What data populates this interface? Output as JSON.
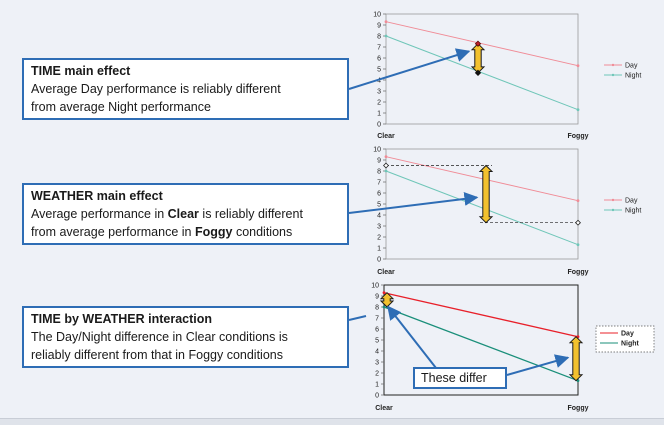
{
  "callouts": {
    "time": {
      "title": "TIME main effect",
      "line1": "Average Day performance is reliably different",
      "line2": "from average Night performance"
    },
    "weather": {
      "title": "WEATHER main effect",
      "line1_pre": "Average performance in ",
      "line1_bold": "Clear",
      "line1_post": " is reliably different",
      "line2_pre": "from average performance in ",
      "line2_bold": "Foggy",
      "line2_post": " conditions"
    },
    "interaction": {
      "title": "TIME by WEATHER interaction",
      "line1": "The Day/Night difference in Clear conditions is",
      "line2": "reliably different from that in Foggy conditions"
    },
    "differ": {
      "label": "These differ"
    }
  },
  "colors": {
    "day_faint": "#f08c97",
    "night_faint": "#6fc6b8",
    "day_strong": "#e8202a",
    "night_strong": "#1a8f7a",
    "arrow_blue": "#2e6db5",
    "marker_yellow": "#f2c12e"
  },
  "chart_data": [
    {
      "type": "line",
      "categories": [
        "Clear",
        "Foggy"
      ],
      "series": [
        {
          "name": "Day",
          "values": [
            9.3,
            5.3
          ]
        },
        {
          "name": "Night",
          "values": [
            8.0,
            1.3
          ]
        }
      ],
      "ylim": [
        0,
        10
      ],
      "yticks": [
        "0",
        "1",
        "2",
        "3",
        "4",
        "5",
        "6",
        "7",
        "8",
        "9",
        "10"
      ],
      "legend": "right",
      "grid": false
    },
    {
      "type": "line",
      "categories": [
        "Clear",
        "Foggy"
      ],
      "series": [
        {
          "name": "Day",
          "values": [
            9.3,
            5.3
          ]
        },
        {
          "name": "Night",
          "values": [
            8.0,
            1.3
          ]
        }
      ],
      "ylim": [
        0,
        10
      ],
      "yticks": [
        "0",
        "1",
        "2",
        "3",
        "4",
        "5",
        "6",
        "7",
        "8",
        "9",
        "10"
      ],
      "legend": "right",
      "grid": false
    },
    {
      "type": "line",
      "categories": [
        "Clear",
        "Foggy"
      ],
      "series": [
        {
          "name": "Day",
          "values": [
            9.3,
            5.3
          ]
        },
        {
          "name": "Night",
          "values": [
            8.0,
            1.3
          ]
        }
      ],
      "ylim": [
        0,
        10
      ],
      "yticks": [
        "0",
        "1",
        "2",
        "3",
        "4",
        "5",
        "6",
        "7",
        "8",
        "9",
        "10"
      ],
      "legend": "right",
      "grid": false
    }
  ]
}
